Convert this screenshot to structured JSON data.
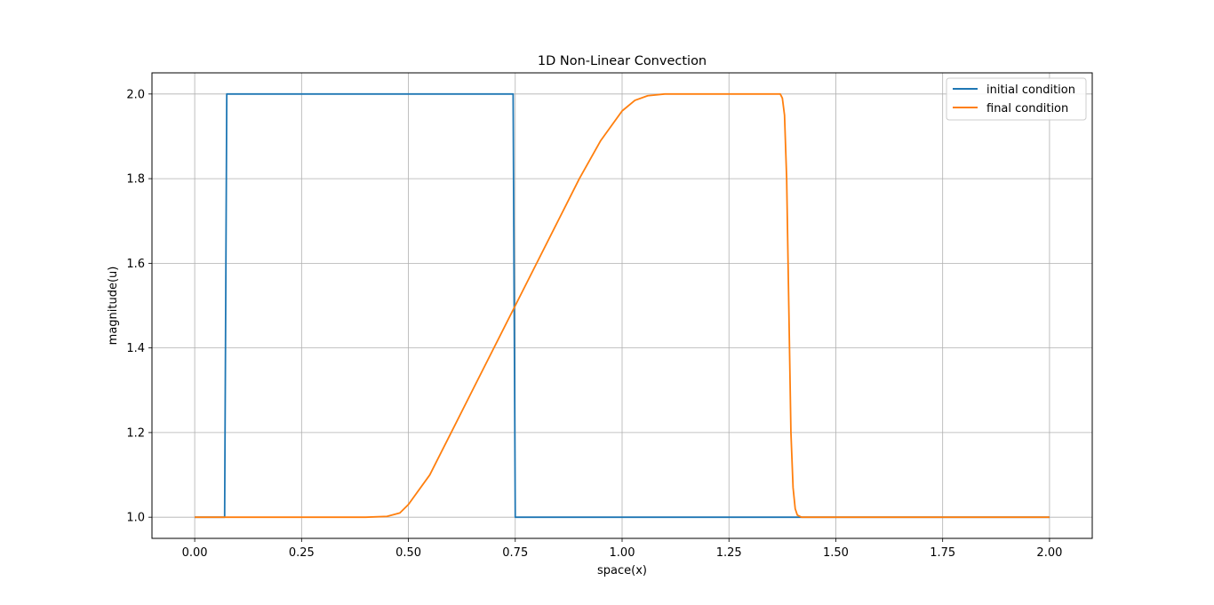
{
  "chart_data": {
    "type": "line",
    "title": "1D Non-Linear Convection",
    "xlabel": "space(x)",
    "ylabel": "magnitude(u)",
    "xlim": [
      -0.1,
      2.1
    ],
    "ylim": [
      0.95,
      2.05
    ],
    "xticks": [
      0.0,
      0.25,
      0.5,
      0.75,
      1.0,
      1.25,
      1.5,
      1.75,
      2.0
    ],
    "xtick_labels": [
      "0.00",
      "0.25",
      "0.50",
      "0.75",
      "1.00",
      "1.25",
      "1.50",
      "1.75",
      "2.00"
    ],
    "yticks": [
      1.0,
      1.2,
      1.4,
      1.6,
      1.8,
      2.0
    ],
    "ytick_labels": [
      "1.0",
      "1.2",
      "1.4",
      "1.6",
      "1.8",
      "2.0"
    ],
    "grid": true,
    "legend_position": "top-right",
    "series": [
      {
        "name": "initial condition",
        "color": "#1f77b4",
        "x": [
          0.0,
          0.07,
          0.075,
          0.745,
          0.75,
          2.0
        ],
        "y": [
          1.0,
          1.0,
          2.0,
          2.0,
          1.0,
          1.0
        ]
      },
      {
        "name": "final condition",
        "color": "#ff7f0e",
        "x": [
          0.0,
          0.4,
          0.45,
          0.48,
          0.5,
          0.55,
          0.6,
          0.65,
          0.7,
          0.75,
          0.8,
          0.85,
          0.9,
          0.95,
          1.0,
          1.03,
          1.06,
          1.1,
          1.2,
          1.3,
          1.37,
          1.375,
          1.38,
          1.385,
          1.39,
          1.395,
          1.4,
          1.405,
          1.41,
          1.42,
          1.5,
          2.0
        ],
        "y": [
          1.0,
          1.0,
          1.002,
          1.01,
          1.03,
          1.1,
          1.2,
          1.3,
          1.4,
          1.5,
          1.6,
          1.7,
          1.8,
          1.89,
          1.96,
          1.985,
          1.996,
          2.0,
          2.0,
          2.0,
          2.0,
          1.99,
          1.95,
          1.8,
          1.5,
          1.2,
          1.07,
          1.02,
          1.005,
          1.0,
          1.0,
          1.0
        ]
      }
    ]
  }
}
